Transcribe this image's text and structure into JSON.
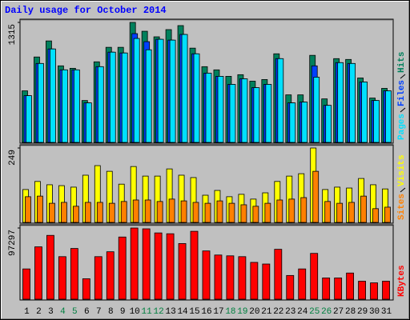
{
  "chart_data": [
    {
      "type": "bar",
      "title": "Daily usage for October 2014",
      "ylim": [
        0,
        1315
      ],
      "yticks": [
        1315
      ],
      "series": [
        {
          "name": "Hits",
          "color": "#00805c",
          "values": [
            565,
            936,
            1112,
            839,
            812,
            459,
            883,
            1042,
            1042,
            1315,
            1218,
            1157,
            1236,
            1280,
            1033,
            830,
            795,
            724,
            742,
            671,
            689,
            971,
            521,
            521,
            954,
            477,
            918,
            909,
            706,
            486,
            592
          ]
        },
        {
          "name": "Files",
          "color": "#0040ff",
          "values": [
            512,
            865,
            1024,
            795,
            795,
            433,
            830,
            989,
            980,
            1192,
            1104,
            1130,
            1121,
            1183,
            971,
            759,
            724,
            636,
            697,
            600,
            636,
            918,
            433,
            442,
            839,
            406,
            874,
            865,
            662,
            459,
            565
          ]
        },
        {
          "name": "Pages",
          "color": "#00e0ff",
          "values": [
            512,
            865,
            1024,
            795,
            795,
            433,
            830,
            989,
            980,
            1139,
            1015,
            1130,
            1121,
            1183,
            971,
            759,
            724,
            636,
            697,
            600,
            636,
            918,
            433,
            442,
            715,
            406,
            874,
            865,
            662,
            459,
            565
          ]
        }
      ]
    },
    {
      "type": "bar",
      "ylim": [
        0,
        249
      ],
      "yticks": [
        249
      ],
      "series": [
        {
          "name": "Visits",
          "color": "#ffff00",
          "values": [
            110,
            137,
            126,
            123,
            118,
            158,
            190,
            171,
            128,
            187,
            155,
            155,
            179,
            158,
            150,
            91,
            107,
            86,
            94,
            78,
            99,
            137,
            155,
            163,
            249,
            110,
            118,
            115,
            147,
            126,
            112
          ]
        },
        {
          "name": "Sites",
          "color": "#ff8000",
          "values": [
            86,
            88,
            64,
            67,
            54,
            67,
            67,
            64,
            70,
            75,
            75,
            70,
            78,
            72,
            67,
            64,
            72,
            64,
            59,
            54,
            64,
            75,
            78,
            83,
            171,
            70,
            64,
            67,
            88,
            46,
            51
          ]
        }
      ]
    },
    {
      "type": "bar",
      "ylim": [
        0,
        97297
      ],
      "yticks": [
        97297
      ],
      "categories": [
        "1",
        "2",
        "3",
        "4",
        "5",
        "6",
        "7",
        "8",
        "9",
        "10",
        "11",
        "12",
        "13",
        "14",
        "15",
        "16",
        "17",
        "18",
        "19",
        "20",
        "21",
        "22",
        "23",
        "24",
        "25",
        "26",
        "27",
        "28",
        "29",
        "30",
        "31"
      ],
      "category_colors": [
        "#000000",
        "#000000",
        "#000000",
        "#008040",
        "#008040",
        "#000000",
        "#000000",
        "#000000",
        "#000000",
        "#000000",
        "#008040",
        "#008040",
        "#000000",
        "#000000",
        "#000000",
        "#000000",
        "#000000",
        "#008040",
        "#008040",
        "#000000",
        "#000000",
        "#000000",
        "#000000",
        "#000000",
        "#008040",
        "#008040",
        "#000000",
        "#000000",
        "#000000",
        "#000000",
        "#000000"
      ],
      "series": [
        {
          "name": "KBytes",
          "color": "#ff0000",
          "values": [
            41373,
            71564,
            87218,
            58147,
            69329,
            27955,
            58147,
            64856,
            84982,
            97297,
            96179,
            90588,
            89459,
            76040,
            92811,
            65975,
            60384,
            59266,
            58147,
            50321,
            48085,
            68213,
            32429,
            41373,
            62620,
            29073,
            29073,
            35783,
            24601,
            22364,
            24601
          ]
        }
      ]
    }
  ]
}
